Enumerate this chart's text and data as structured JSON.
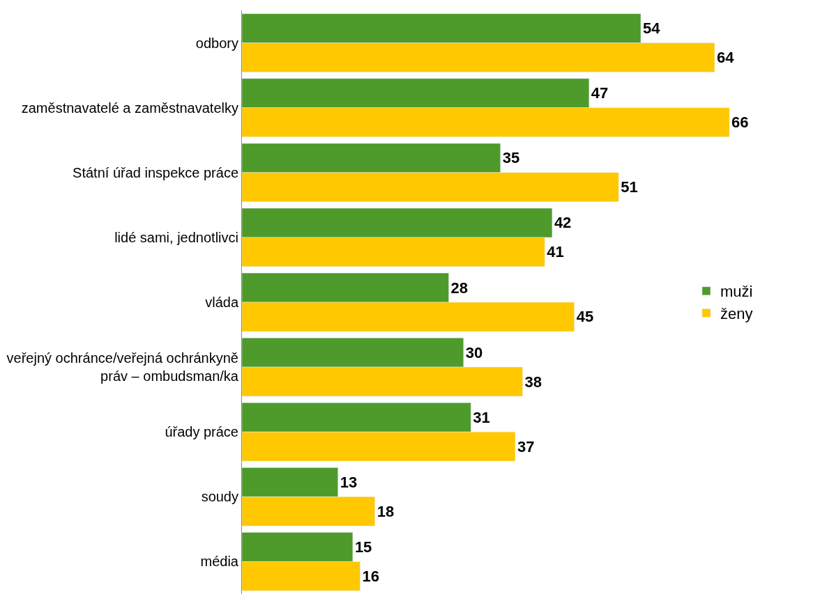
{
  "chart_data": {
    "type": "bar",
    "orientation": "horizontal",
    "categories": [
      "odbory",
      "zaměstnavatelé a zaměstnavatelky",
      "Státní úřad inspekce práce",
      "lidé sami, jednotlivci",
      "vláda",
      "veřejný ochránce/veřejná ochránkyně práv – ombudsman/ka",
      "úřady práce",
      "soudy",
      "média"
    ],
    "series": [
      {
        "name": "muži",
        "color": "#4e9a2b",
        "values": [
          54,
          47,
          35,
          42,
          28,
          30,
          31,
          13,
          15
        ]
      },
      {
        "name": "ženy",
        "color": "#ffc800",
        "values": [
          64,
          66,
          51,
          41,
          45,
          38,
          37,
          18,
          16
        ]
      }
    ],
    "data_labels": true,
    "legend": "right",
    "tick_labels": "y"
  }
}
